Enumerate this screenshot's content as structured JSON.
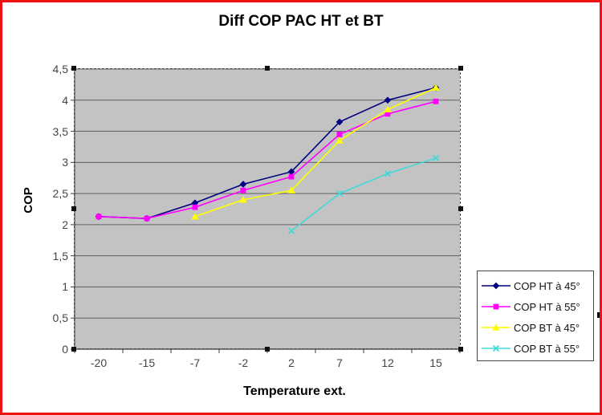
{
  "frame": {
    "border_color": "#ee1111",
    "background": "#ffffff"
  },
  "chart": {
    "plot_background": "#c3c3c3",
    "gridline_color": "#616161",
    "axis_line_color": "#3c3c3c",
    "selected": true
  },
  "chart_data": {
    "type": "line",
    "title": "Diff COP PAC HT et BT",
    "xlabel": "Temperature ext.",
    "ylabel": "COP",
    "categories": [
      -20,
      -15,
      -7,
      -2,
      2,
      7,
      12,
      15
    ],
    "category_labels": [
      "-20",
      "-15",
      "-7",
      "-2",
      "2",
      "7",
      "12",
      "15"
    ],
    "series": [
      {
        "name": "COP HT à 45°",
        "color": "#000080",
        "marker": "diamond",
        "values": [
          2.13,
          2.1,
          2.35,
          2.65,
          2.85,
          3.65,
          4.0,
          4.2
        ]
      },
      {
        "name": "COP HT à 55°",
        "color": "#ff00ff",
        "marker": "square",
        "values": [
          2.13,
          2.1,
          2.28,
          2.55,
          2.77,
          3.45,
          3.78,
          3.98
        ]
      },
      {
        "name": "COP BT à 45°",
        "color": "#ffff00",
        "marker": "triangle",
        "values": [
          null,
          null,
          2.13,
          2.4,
          2.55,
          3.35,
          3.85,
          4.2
        ]
      },
      {
        "name": "COP BT à 55°",
        "color": "#45d8d8",
        "marker": "x",
        "values": [
          null,
          null,
          null,
          null,
          1.9,
          2.5,
          2.82,
          3.07
        ]
      }
    ],
    "ylim": [
      0,
      4.5
    ],
    "yticks": [
      {
        "value": 0,
        "label": "0"
      },
      {
        "value": 0.5,
        "label": "0,5"
      },
      {
        "value": 1,
        "label": "1"
      },
      {
        "value": 1.5,
        "label": "1,5"
      },
      {
        "value": 2,
        "label": "2"
      },
      {
        "value": 2.5,
        "label": "2,5"
      },
      {
        "value": 3,
        "label": "3"
      },
      {
        "value": 3.5,
        "label": "3,5"
      },
      {
        "value": 4,
        "label": "4"
      },
      {
        "value": 4.5,
        "label": "4,5"
      }
    ],
    "grid": true,
    "legend_position": "right",
    "decimal_separator": ","
  }
}
